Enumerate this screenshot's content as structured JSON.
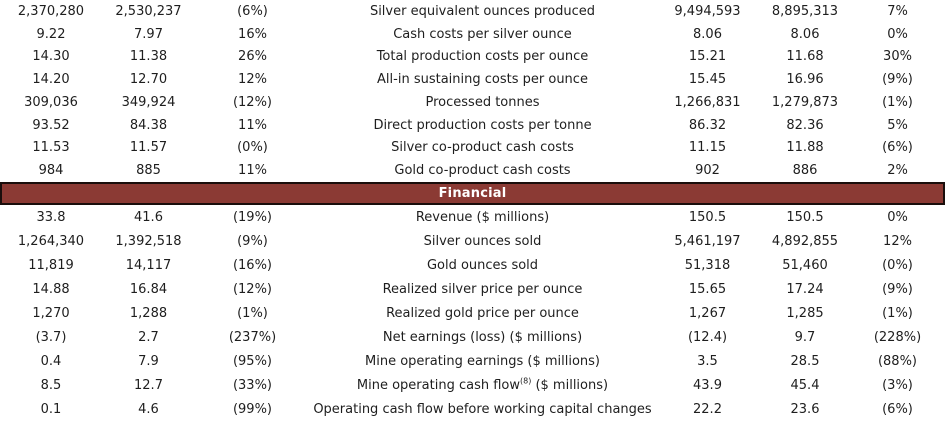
{
  "page": {
    "background": "#ffffff",
    "text_color": "#1e1e1e"
  },
  "section_band": {
    "label": "Financial",
    "bg_color": "#8b3a34",
    "border_color": "#1a0e0c",
    "text_color": "#ffffff"
  },
  "operational_rows": [
    {
      "v1": "2,370,280",
      "v2": "2,530,237",
      "pct1": "(6%)",
      "metric": "Silver equivalent ounces produced",
      "v3": "9,494,593",
      "v4": "8,895,313",
      "pct2": "7%"
    },
    {
      "v1": "9.22",
      "v2": "7.97",
      "pct1": "16%",
      "metric": "Cash costs per silver ounce",
      "v3": "8.06",
      "v4": "8.06",
      "pct2": "0%"
    },
    {
      "v1": "14.30",
      "v2": "11.38",
      "pct1": "26%",
      "metric": "Total production costs per ounce",
      "v3": "15.21",
      "v4": "11.68",
      "pct2": "30%"
    },
    {
      "v1": "14.20",
      "v2": "12.70",
      "pct1": "12%",
      "metric": "All-in sustaining costs per ounce",
      "v3": "15.45",
      "v4": "16.96",
      "pct2": "(9%)"
    },
    {
      "v1": "309,036",
      "v2": "349,924",
      "pct1": "(12%)",
      "metric": "Processed tonnes",
      "v3": "1,266,831",
      "v4": "1,279,873",
      "pct2": "(1%)"
    },
    {
      "v1": "93.52",
      "v2": "84.38",
      "pct1": "11%",
      "metric": "Direct production costs per tonne",
      "v3": "86.32",
      "v4": "82.36",
      "pct2": "5%"
    },
    {
      "v1": "11.53",
      "v2": "11.57",
      "pct1": "(0%)",
      "metric": "Silver co-product cash costs",
      "v3": "11.15",
      "v4": "11.88",
      "pct2": "(6%)"
    },
    {
      "v1": "984",
      "v2": "885",
      "pct1": "11%",
      "metric": "Gold co-product cash costs",
      "v3": "902",
      "v4": "886",
      "pct2": "2%"
    }
  ],
  "financial_rows": [
    {
      "v1": "33.8",
      "v2": "41.6",
      "pct1": "(19%)",
      "metric": "Revenue ($ millions)",
      "v3": "150.5",
      "v4": "150.5",
      "pct2": "0%"
    },
    {
      "v1": "1,264,340",
      "v2": "1,392,518",
      "pct1": "(9%)",
      "metric": "Silver ounces sold",
      "v3": "5,461,197",
      "v4": "4,892,855",
      "pct2": "12%"
    },
    {
      "v1": "11,819",
      "v2": "14,117",
      "pct1": "(16%)",
      "metric": "Gold ounces sold",
      "v3": "51,318",
      "v4": "51,460",
      "pct2": "(0%)"
    },
    {
      "v1": "14.88",
      "v2": "16.84",
      "pct1": "(12%)",
      "metric": "Realized silver price per ounce",
      "v3": "15.65",
      "v4": "17.24",
      "pct2": "(9%)"
    },
    {
      "v1": "1,270",
      "v2": "1,288",
      "pct1": "(1%)",
      "metric": "Realized gold price per ounce",
      "v3": "1,267",
      "v4": "1,285",
      "pct2": "(1%)"
    },
    {
      "v1": "(3.7)",
      "v2": "2.7",
      "pct1": "(237%)",
      "metric": "Net earnings (loss) ($ millions)",
      "v3": "(12.4)",
      "v4": "9.7",
      "pct2": "(228%)"
    },
    {
      "v1": "0.4",
      "v2": "7.9",
      "pct1": "(95%)",
      "metric": "Mine operating earnings ($ millions)",
      "v3": "3.5",
      "v4": "28.5",
      "pct2": "(88%)"
    },
    {
      "v1": "8.5",
      "v2": "12.7",
      "pct1": "(33%)",
      "metric": "Mine operating cash flow",
      "sup": "(8)",
      "rest": " ($ millions)",
      "v3": "43.9",
      "v4": "45.4",
      "pct2": "(3%)"
    },
    {
      "v1": "0.1",
      "v2": "4.6",
      "pct1": "(99%)",
      "metric": "Operating cash flow before working capital changes",
      "v3": "22.2",
      "v4": "23.6",
      "pct2": "(6%)"
    }
  ]
}
